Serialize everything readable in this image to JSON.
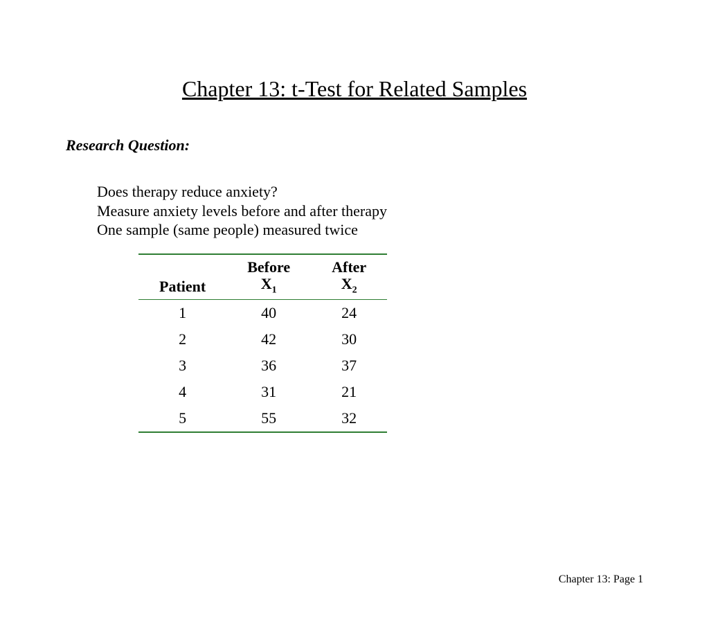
{
  "title": "Chapter 13: t-Test for Related Samples",
  "section_heading": "Research Question:",
  "body": {
    "line1": "Does therapy reduce anxiety?",
    "line2": "Measure anxiety levels before and after therapy",
    "line3": "One sample (same people) measured twice"
  },
  "table": {
    "border_color": "#2e7d32",
    "columns": {
      "patient": {
        "label": "Patient"
      },
      "before": {
        "label": "Before",
        "var": "X",
        "sub": "1"
      },
      "after": {
        "label": "After",
        "var": "X",
        "sub": "2"
      }
    },
    "rows": [
      {
        "patient": "1",
        "before": "40",
        "after": "24"
      },
      {
        "patient": "2",
        "before": "42",
        "after": "30"
      },
      {
        "patient": "3",
        "before": "36",
        "after": "37"
      },
      {
        "patient": "4",
        "before": "31",
        "after": "21"
      },
      {
        "patient": "5",
        "before": "55",
        "after": "32"
      }
    ]
  },
  "footer": "Chapter 13: Page 1",
  "styling": {
    "background_color": "#ffffff",
    "text_color": "#000000",
    "title_fontsize": 32,
    "heading_fontsize": 22,
    "body_fontsize": 22,
    "table_fontsize": 22,
    "footer_fontsize": 16,
    "font_family": "Times New Roman"
  }
}
